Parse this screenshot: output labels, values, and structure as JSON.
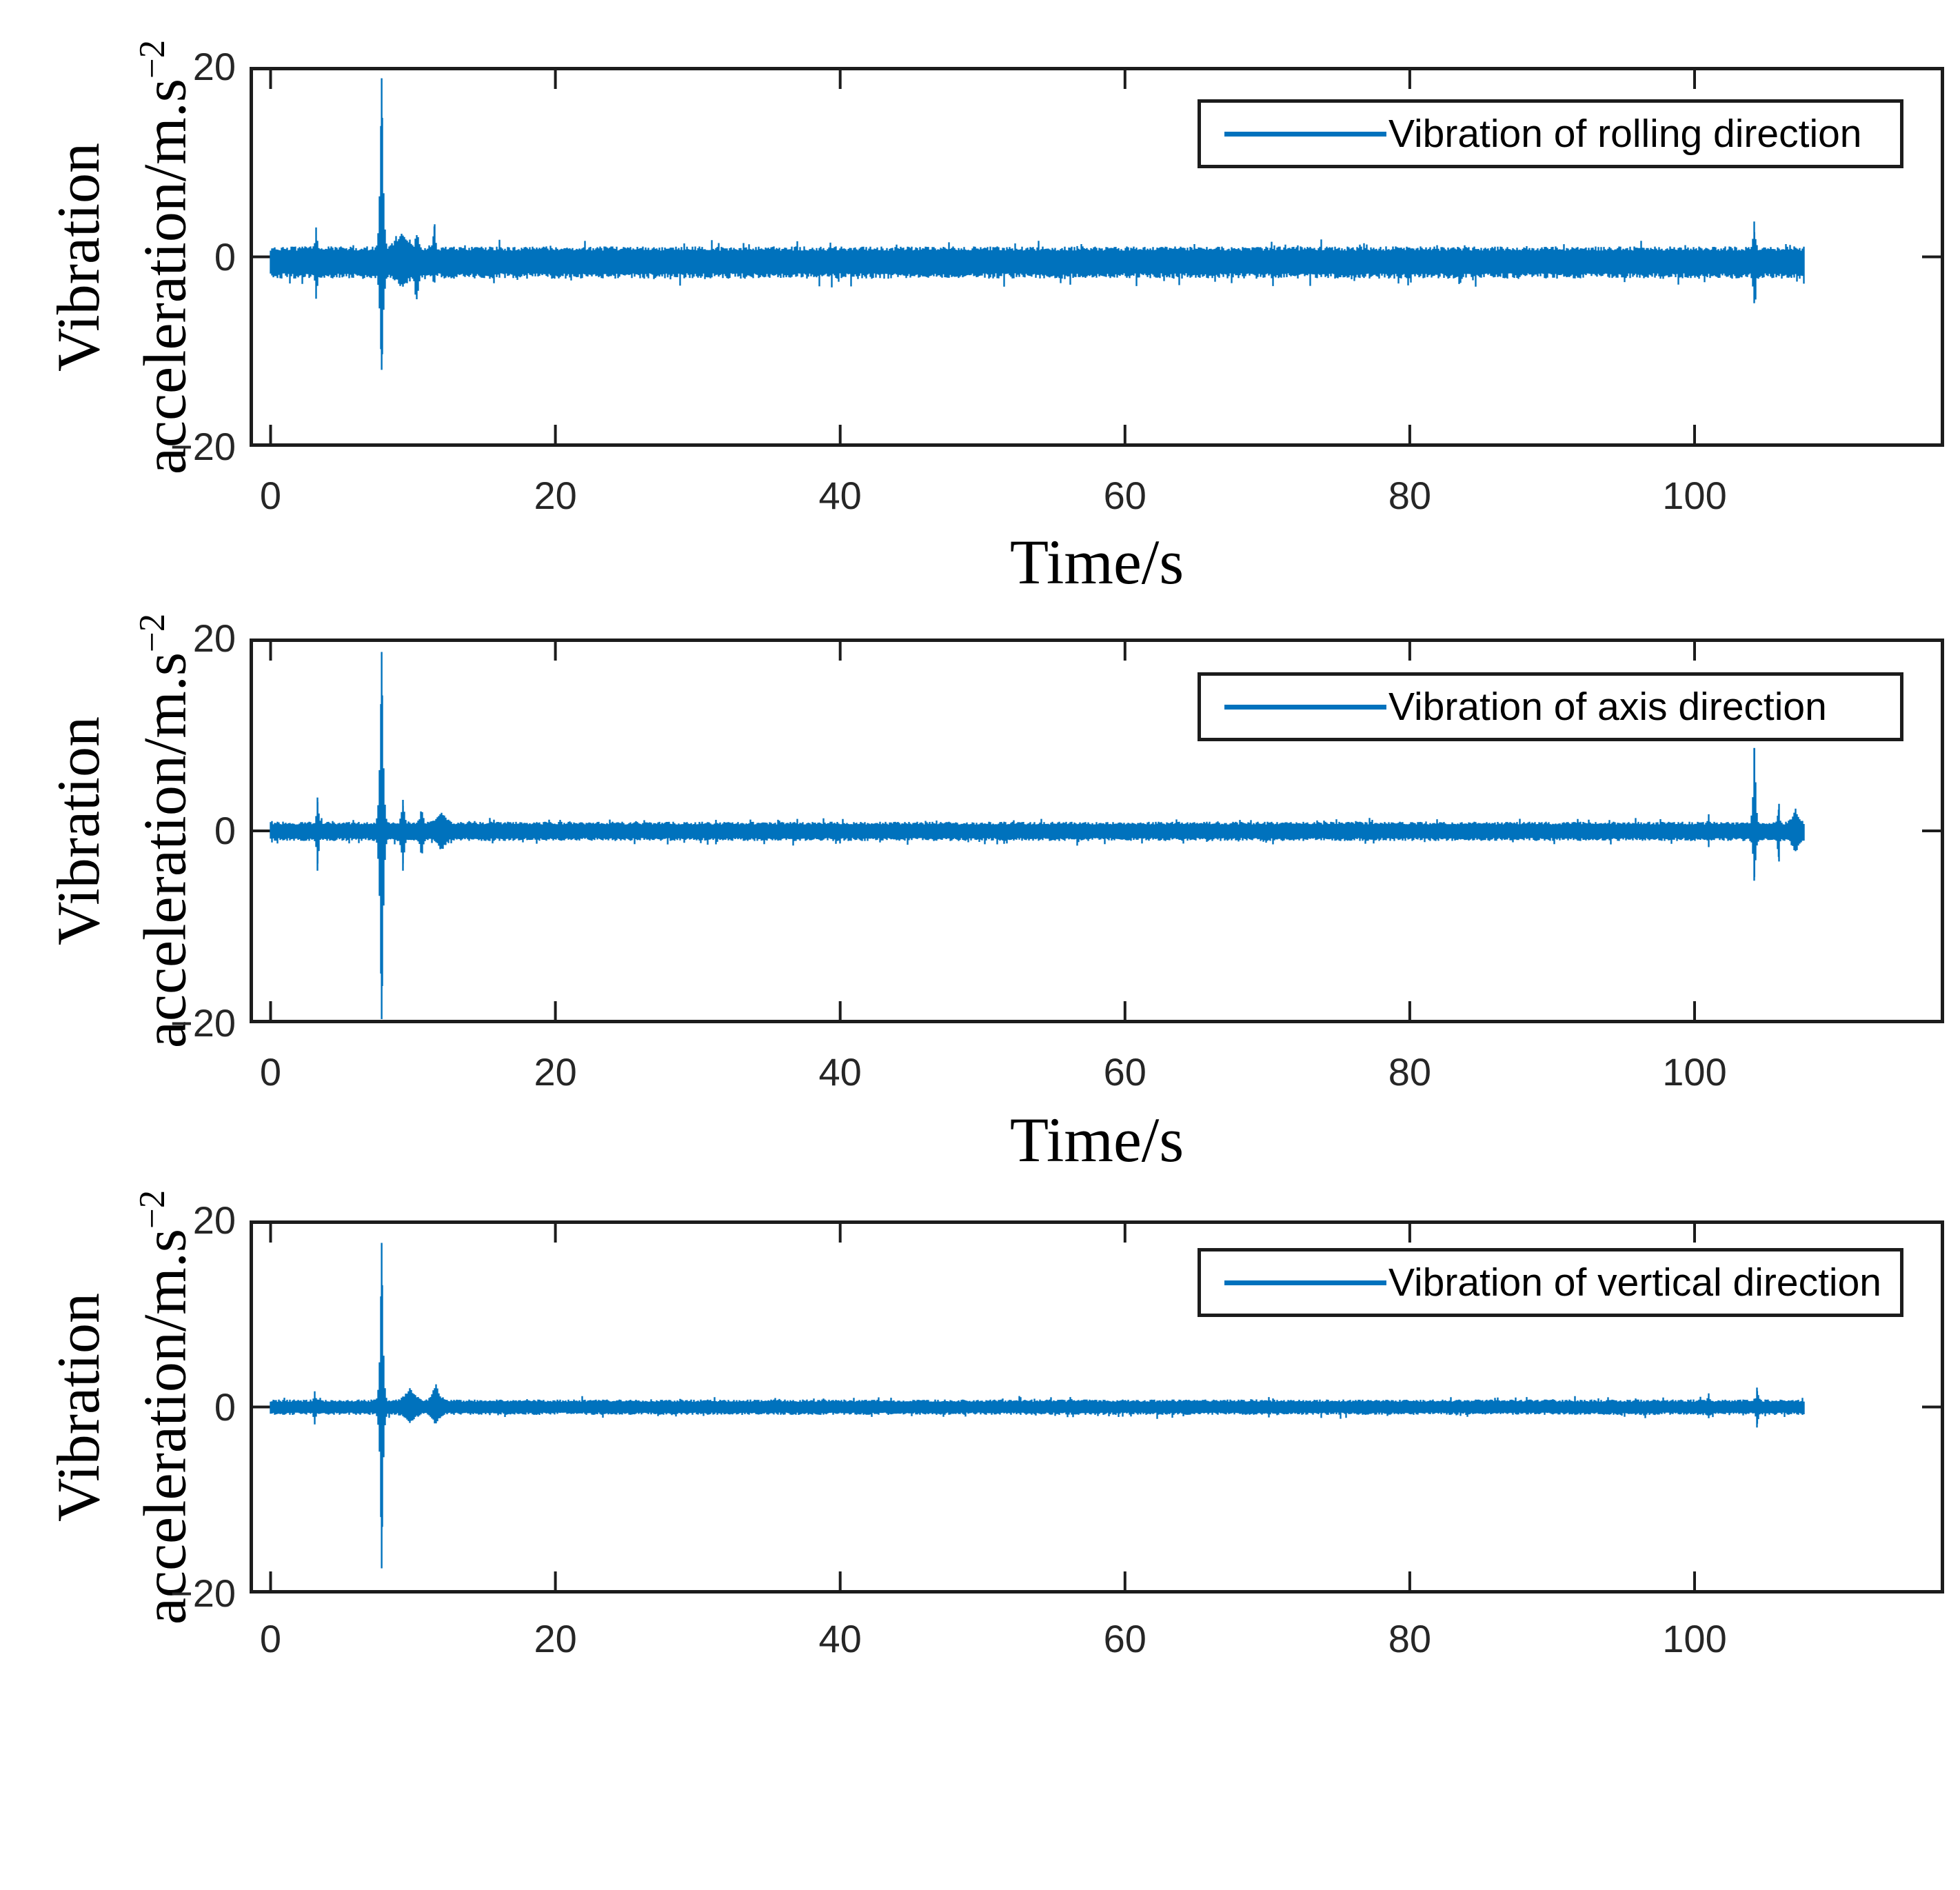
{
  "figure": {
    "background": "#ffffff",
    "line_color": "#0072BD",
    "axis_color": "#1c1c1c",
    "tick_text_color": "#262626"
  },
  "chart_data": [
    {
      "type": "line",
      "panel": "top",
      "title": "",
      "xlabel": "Time/s",
      "ylabel": "Vibration acceleration/m.s⁻²",
      "ylabel_lines": [
        "Vibration",
        "acceleration/m.s"
      ],
      "ylabel_sup": "−2",
      "legend": "Vibration of rolling direction",
      "legend_position": "upper right",
      "xlim": [
        -1.5,
        117.5
      ],
      "ylim": [
        -20,
        20
      ],
      "xticks": [
        "0",
        "20",
        "40",
        "60",
        "80",
        "100"
      ],
      "xtick_values": [
        0,
        20,
        40,
        60,
        80,
        100
      ],
      "yticks": [
        "20",
        "0",
        "−20"
      ],
      "ytick_values": [
        20,
        0,
        -20
      ],
      "grid": false,
      "signal": {
        "t_start": 0,
        "t_end": 107.7,
        "noise_center": -0.4,
        "noise_up": 1.5,
        "noise_down": 1.9,
        "spikes": [
          {
            "t": 3.2,
            "up": 2.2,
            "down": 2.6,
            "width": 0.35
          },
          {
            "t": 7.8,
            "up": 19.2,
            "down": 11.5,
            "width": 0.55
          },
          {
            "t": 9.2,
            "up": 1.5,
            "down": 1.1,
            "width": 1.3
          },
          {
            "t": 10.3,
            "up": 1.9,
            "down": 3.0,
            "width": 0.45
          },
          {
            "t": 11.5,
            "up": 3.6,
            "down": 1.1,
            "width": 0.3
          },
          {
            "t": 104.2,
            "up": 3.0,
            "down": 3.3,
            "width": 0.4
          }
        ]
      }
    },
    {
      "type": "line",
      "panel": "middle",
      "title": "",
      "xlabel": "Time/s",
      "ylabel": "Vibration acceleration/m.s⁻²",
      "ylabel_lines": [
        "Vibration",
        "acceleration/m.s"
      ],
      "ylabel_sup": "−2",
      "legend": "Vibration of axis direction",
      "legend_position": "upper right",
      "xlim": [
        -1.5,
        117.5
      ],
      "ylim": [
        -20,
        20
      ],
      "xticks": [
        "0",
        "20",
        "40",
        "60",
        "80",
        "100"
      ],
      "xtick_values": [
        0,
        20,
        40,
        60,
        80,
        100
      ],
      "yticks": [
        "20",
        "0",
        "−20"
      ],
      "ytick_values": [
        20,
        0,
        -20
      ],
      "grid": false,
      "signal": {
        "t_start": 0,
        "t_end": 107.7,
        "noise_center": 0,
        "noise_up": 0.95,
        "noise_down": 1.05,
        "spikes": [
          {
            "t": 3.3,
            "up": 3.0,
            "down": 3.4,
            "width": 0.35
          },
          {
            "t": 7.8,
            "up": 18.6,
            "down": 21.0,
            "width": 0.55
          },
          {
            "t": 9.3,
            "up": 2.6,
            "down": 3.4,
            "width": 0.5
          },
          {
            "t": 10.6,
            "up": 1.7,
            "down": 2.1,
            "width": 0.5
          },
          {
            "t": 12.0,
            "up": 1.1,
            "down": 1.1,
            "width": 0.9
          },
          {
            "t": 101.0,
            "up": 1.0,
            "down": 0.7,
            "width": 0.3
          },
          {
            "t": 104.2,
            "up": 8.6,
            "down": 4.8,
            "width": 0.45
          },
          {
            "t": 105.9,
            "up": 2.2,
            "down": 2.7,
            "width": 0.3
          },
          {
            "t": 107.1,
            "up": 1.4,
            "down": 1.4,
            "width": 0.7
          }
        ]
      }
    },
    {
      "type": "line",
      "panel": "bottom",
      "title": "",
      "xlabel": "",
      "ylabel": "Vibration acceleration/m.s⁻²",
      "ylabel_lines": [
        "Vibration",
        "acceleration/m.s"
      ],
      "ylabel_sup": "−2",
      "legend": "Vibration of vertical direction",
      "legend_position": "upper right",
      "xlim": [
        -1.5,
        117.5
      ],
      "ylim": [
        -20,
        20
      ],
      "xticks": [
        "0",
        "20",
        "40",
        "60",
        "80",
        "100"
      ],
      "xtick_values": [
        0,
        20,
        40,
        60,
        80,
        100
      ],
      "yticks": [
        "20",
        "0",
        "−20"
      ],
      "ytick_values": [
        20,
        0,
        -20
      ],
      "grid": false,
      "signal": {
        "t_start": 0,
        "t_end": 107.7,
        "noise_center": 0,
        "noise_up": 0.8,
        "noise_down": 0.85,
        "spikes": [
          {
            "t": 3.1,
            "up": 1.1,
            "down": 1.2,
            "width": 0.3
          },
          {
            "t": 7.8,
            "up": 17.6,
            "down": 17.3,
            "width": 0.5
          },
          {
            "t": 9.8,
            "up": 1.3,
            "down": 0.9,
            "width": 1.1
          },
          {
            "t": 11.6,
            "up": 1.8,
            "down": 1.2,
            "width": 0.7
          },
          {
            "t": 101.0,
            "up": 0.8,
            "down": 0.6,
            "width": 0.3
          },
          {
            "t": 104.4,
            "up": 1.7,
            "down": 1.8,
            "width": 0.35
          }
        ]
      }
    }
  ]
}
